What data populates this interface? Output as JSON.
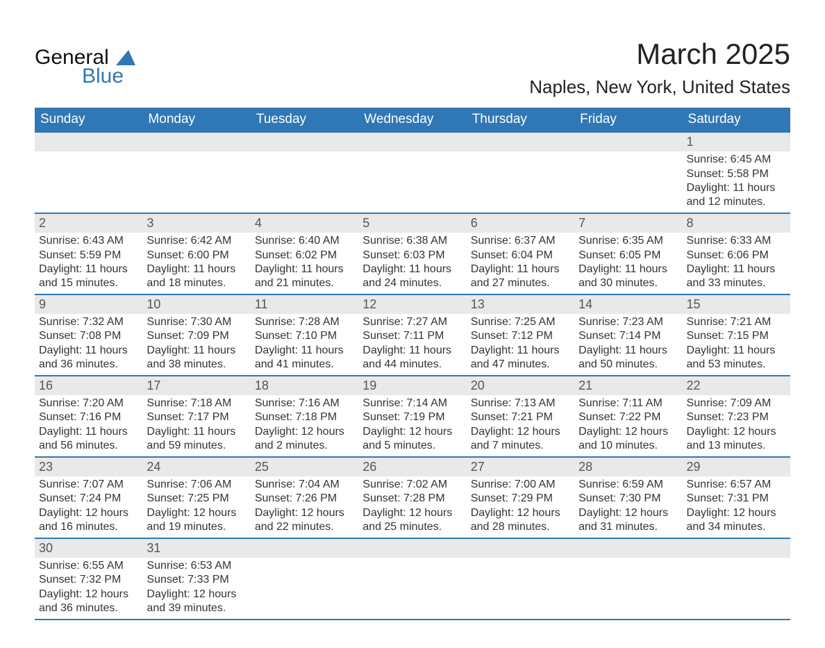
{
  "brand": {
    "line1": "General",
    "line2": "Blue"
  },
  "title": "March 2025",
  "location": "Naples, New York, United States",
  "colors": {
    "header_blue": "#2f78b5",
    "cell_gray": "#e9e9e9",
    "background": "#ffffff",
    "text_dark": "#333333"
  },
  "calendar": {
    "days_of_week": [
      "Sunday",
      "Monday",
      "Tuesday",
      "Wednesday",
      "Thursday",
      "Friday",
      "Saturday"
    ],
    "leading_blanks": 6,
    "trailing_blanks": 5,
    "days": [
      {
        "n": 1,
        "sunrise": "6:45 AM",
        "sunset": "5:58 PM",
        "daylight": "11 hours and 12 minutes."
      },
      {
        "n": 2,
        "sunrise": "6:43 AM",
        "sunset": "5:59 PM",
        "daylight": "11 hours and 15 minutes."
      },
      {
        "n": 3,
        "sunrise": "6:42 AM",
        "sunset": "6:00 PM",
        "daylight": "11 hours and 18 minutes."
      },
      {
        "n": 4,
        "sunrise": "6:40 AM",
        "sunset": "6:02 PM",
        "daylight": "11 hours and 21 minutes."
      },
      {
        "n": 5,
        "sunrise": "6:38 AM",
        "sunset": "6:03 PM",
        "daylight": "11 hours and 24 minutes."
      },
      {
        "n": 6,
        "sunrise": "6:37 AM",
        "sunset": "6:04 PM",
        "daylight": "11 hours and 27 minutes."
      },
      {
        "n": 7,
        "sunrise": "6:35 AM",
        "sunset": "6:05 PM",
        "daylight": "11 hours and 30 minutes."
      },
      {
        "n": 8,
        "sunrise": "6:33 AM",
        "sunset": "6:06 PM",
        "daylight": "11 hours and 33 minutes."
      },
      {
        "n": 9,
        "sunrise": "7:32 AM",
        "sunset": "7:08 PM",
        "daylight": "11 hours and 36 minutes."
      },
      {
        "n": 10,
        "sunrise": "7:30 AM",
        "sunset": "7:09 PM",
        "daylight": "11 hours and 38 minutes."
      },
      {
        "n": 11,
        "sunrise": "7:28 AM",
        "sunset": "7:10 PM",
        "daylight": "11 hours and 41 minutes."
      },
      {
        "n": 12,
        "sunrise": "7:27 AM",
        "sunset": "7:11 PM",
        "daylight": "11 hours and 44 minutes."
      },
      {
        "n": 13,
        "sunrise": "7:25 AM",
        "sunset": "7:12 PM",
        "daylight": "11 hours and 47 minutes."
      },
      {
        "n": 14,
        "sunrise": "7:23 AM",
        "sunset": "7:14 PM",
        "daylight": "11 hours and 50 minutes."
      },
      {
        "n": 15,
        "sunrise": "7:21 AM",
        "sunset": "7:15 PM",
        "daylight": "11 hours and 53 minutes."
      },
      {
        "n": 16,
        "sunrise": "7:20 AM",
        "sunset": "7:16 PM",
        "daylight": "11 hours and 56 minutes."
      },
      {
        "n": 17,
        "sunrise": "7:18 AM",
        "sunset": "7:17 PM",
        "daylight": "11 hours and 59 minutes."
      },
      {
        "n": 18,
        "sunrise": "7:16 AM",
        "sunset": "7:18 PM",
        "daylight": "12 hours and 2 minutes."
      },
      {
        "n": 19,
        "sunrise": "7:14 AM",
        "sunset": "7:19 PM",
        "daylight": "12 hours and 5 minutes."
      },
      {
        "n": 20,
        "sunrise": "7:13 AM",
        "sunset": "7:21 PM",
        "daylight": "12 hours and 7 minutes."
      },
      {
        "n": 21,
        "sunrise": "7:11 AM",
        "sunset": "7:22 PM",
        "daylight": "12 hours and 10 minutes."
      },
      {
        "n": 22,
        "sunrise": "7:09 AM",
        "sunset": "7:23 PM",
        "daylight": "12 hours and 13 minutes."
      },
      {
        "n": 23,
        "sunrise": "7:07 AM",
        "sunset": "7:24 PM",
        "daylight": "12 hours and 16 minutes."
      },
      {
        "n": 24,
        "sunrise": "7:06 AM",
        "sunset": "7:25 PM",
        "daylight": "12 hours and 19 minutes."
      },
      {
        "n": 25,
        "sunrise": "7:04 AM",
        "sunset": "7:26 PM",
        "daylight": "12 hours and 22 minutes."
      },
      {
        "n": 26,
        "sunrise": "7:02 AM",
        "sunset": "7:28 PM",
        "daylight": "12 hours and 25 minutes."
      },
      {
        "n": 27,
        "sunrise": "7:00 AM",
        "sunset": "7:29 PM",
        "daylight": "12 hours and 28 minutes."
      },
      {
        "n": 28,
        "sunrise": "6:59 AM",
        "sunset": "7:30 PM",
        "daylight": "12 hours and 31 minutes."
      },
      {
        "n": 29,
        "sunrise": "6:57 AM",
        "sunset": "7:31 PM",
        "daylight": "12 hours and 34 minutes."
      },
      {
        "n": 30,
        "sunrise": "6:55 AM",
        "sunset": "7:32 PM",
        "daylight": "12 hours and 36 minutes."
      },
      {
        "n": 31,
        "sunrise": "6:53 AM",
        "sunset": "7:33 PM",
        "daylight": "12 hours and 39 minutes."
      }
    ],
    "labels": {
      "sunrise": "Sunrise:",
      "sunset": "Sunset:",
      "daylight": "Daylight:"
    }
  }
}
